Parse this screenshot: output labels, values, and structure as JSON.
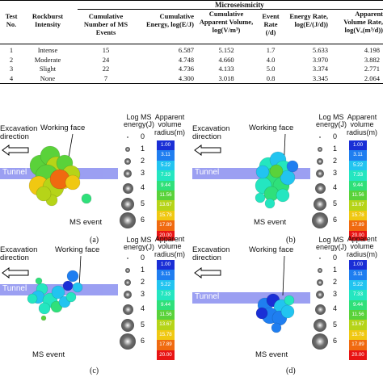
{
  "table": {
    "group_header": "Microseismicity",
    "headers": [
      "Test No.",
      "Rockburst Intensity",
      "Cumulative Number of MS Events",
      "Cumulative Energy, log(E/J)",
      "Cumulative Apparent Volume, log(V/m³)",
      "Event Rate (/d)",
      "Energy Rate, log(E/(J/d))",
      "Apparent Volume Rate, log(Vₐ(m³/d))"
    ],
    "rows": [
      [
        "1",
        "Intense",
        "15",
        "6.587",
        "5.152",
        "1.7",
        "5.633",
        "4.198"
      ],
      [
        "2",
        "Moderate",
        "24",
        "4.748",
        "4.660",
        "4.0",
        "3.970",
        "3.882"
      ],
      [
        "3",
        "Slight",
        "22",
        "4.736",
        "4.133",
        "5.0",
        "3.374",
        "2.771"
      ],
      [
        "4",
        "None",
        "7",
        "4.300",
        "3.018",
        "0.8",
        "3.345",
        "2.064"
      ]
    ]
  },
  "legend": {
    "energy_title": "Log MS energy(J)",
    "energy_levels": [
      "0",
      "1",
      "2",
      "3",
      "4",
      "5",
      "6"
    ],
    "volume_title": "Apparent volume radius(m)",
    "volume_ticks": [
      "1.00",
      "3.11",
      "5.22",
      "7.33",
      "9.44",
      "11.56",
      "13.67",
      "15.78",
      "17.89",
      "20.00"
    ],
    "volume_colors": [
      "#1a2fd6",
      "#1f7ef0",
      "#22c4f0",
      "#24e6c0",
      "#2fe07a",
      "#5ad23a",
      "#b6d418",
      "#f0c812",
      "#f06a10",
      "#e81414"
    ]
  },
  "panels": [
    {
      "caption": "(a)",
      "excavation": "Excavation direction",
      "face": "Working face",
      "tunnel": "Tunnel",
      "event": "MS event"
    },
    {
      "caption": "(b)",
      "excavation": "Excavation direction",
      "face": "Working face",
      "tunnel": "Tunnel",
      "event": "MS event"
    },
    {
      "caption": "(c)",
      "excavation": "Excavation direction",
      "face": "Working face",
      "tunnel": "Tunnel",
      "event": "MS event"
    },
    {
      "caption": "(d)",
      "excavation": "Excavation direction",
      "face": "Working face",
      "tunnel": "Tunnel",
      "event": "MS event"
    }
  ]
}
